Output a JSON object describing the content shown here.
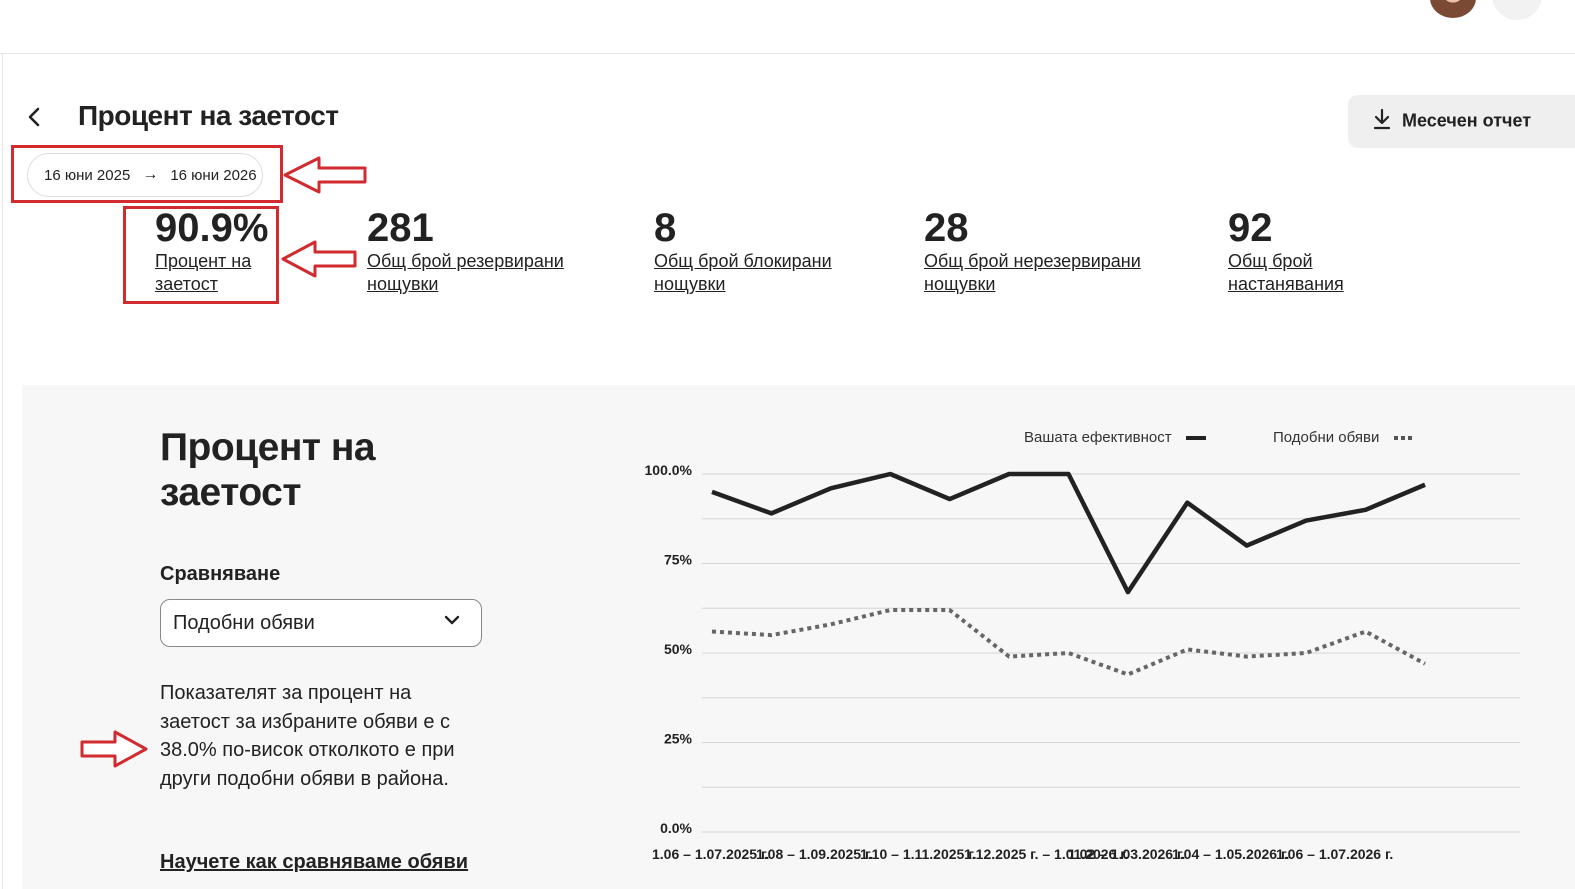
{
  "header": {
    "title": "Процент на заетост",
    "report_button": "Месечен отчет"
  },
  "date_range": {
    "start": "16 юни 2025",
    "arrow": "→",
    "end": "16 юни 2026"
  },
  "stats": [
    {
      "value": "90.9%",
      "label": "Процент на заетост"
    },
    {
      "value": "281",
      "label": "Общ брой резервирани нощувки"
    },
    {
      "value": "8",
      "label": "Общ брой блокирани нощувки"
    },
    {
      "value": "28",
      "label": "Общ брой нерезервирани нощувки"
    },
    {
      "value": "92",
      "label": "Общ брой настанявания"
    }
  ],
  "section": {
    "title": "Процент на заетост",
    "compare_label": "Сравняване",
    "compare_value": "Подобни обяви",
    "desc_before": "Показателят за процент на заетост за избраните обяви е ",
    "desc_highlight": "с 38.0% по-висок",
    "desc_after": " отколкото е при други подобни обяви в района.",
    "learn_link": "Научете как сравняваме обяви"
  },
  "colors": {
    "accent": "#d12a2f",
    "line": "#222222",
    "dotted": "#666666",
    "panel": "#f7f7f7"
  },
  "icons": {
    "back": "chevron-left-icon",
    "download": "download-icon",
    "dropdown": "chevron-down-icon"
  },
  "chart_data": {
    "type": "line",
    "title": "",
    "xlabel": "",
    "ylabel": "",
    "ylim": [
      0,
      100
    ],
    "y_ticks": [
      "100.0%",
      "75%",
      "50%",
      "25%",
      "0.0%"
    ],
    "x_tick_labels": [
      "1.06 – 1.07.2025 г.",
      "1.08 – 1.09.2025 г.",
      "1.10 – 1.11.2025 г.",
      "1.12.2025 г. – 1.01.2026 г.",
      "1.02 – 1.03.2026 г.",
      "1.04 – 1.05.2026 г.",
      "1.06 – 1.07.2026 г."
    ],
    "legend_position": "top-right",
    "series": [
      {
        "name": "Вашата ефективност",
        "style": "solid",
        "values": [
          95,
          89,
          96,
          100,
          93,
          100,
          100,
          67,
          92,
          80,
          87,
          90,
          97
        ]
      },
      {
        "name": "Подобни обяви",
        "style": "dotted",
        "values": [
          56,
          55,
          58,
          62,
          62,
          49,
          50,
          44,
          51,
          49,
          50,
          56,
          47
        ]
      }
    ]
  }
}
